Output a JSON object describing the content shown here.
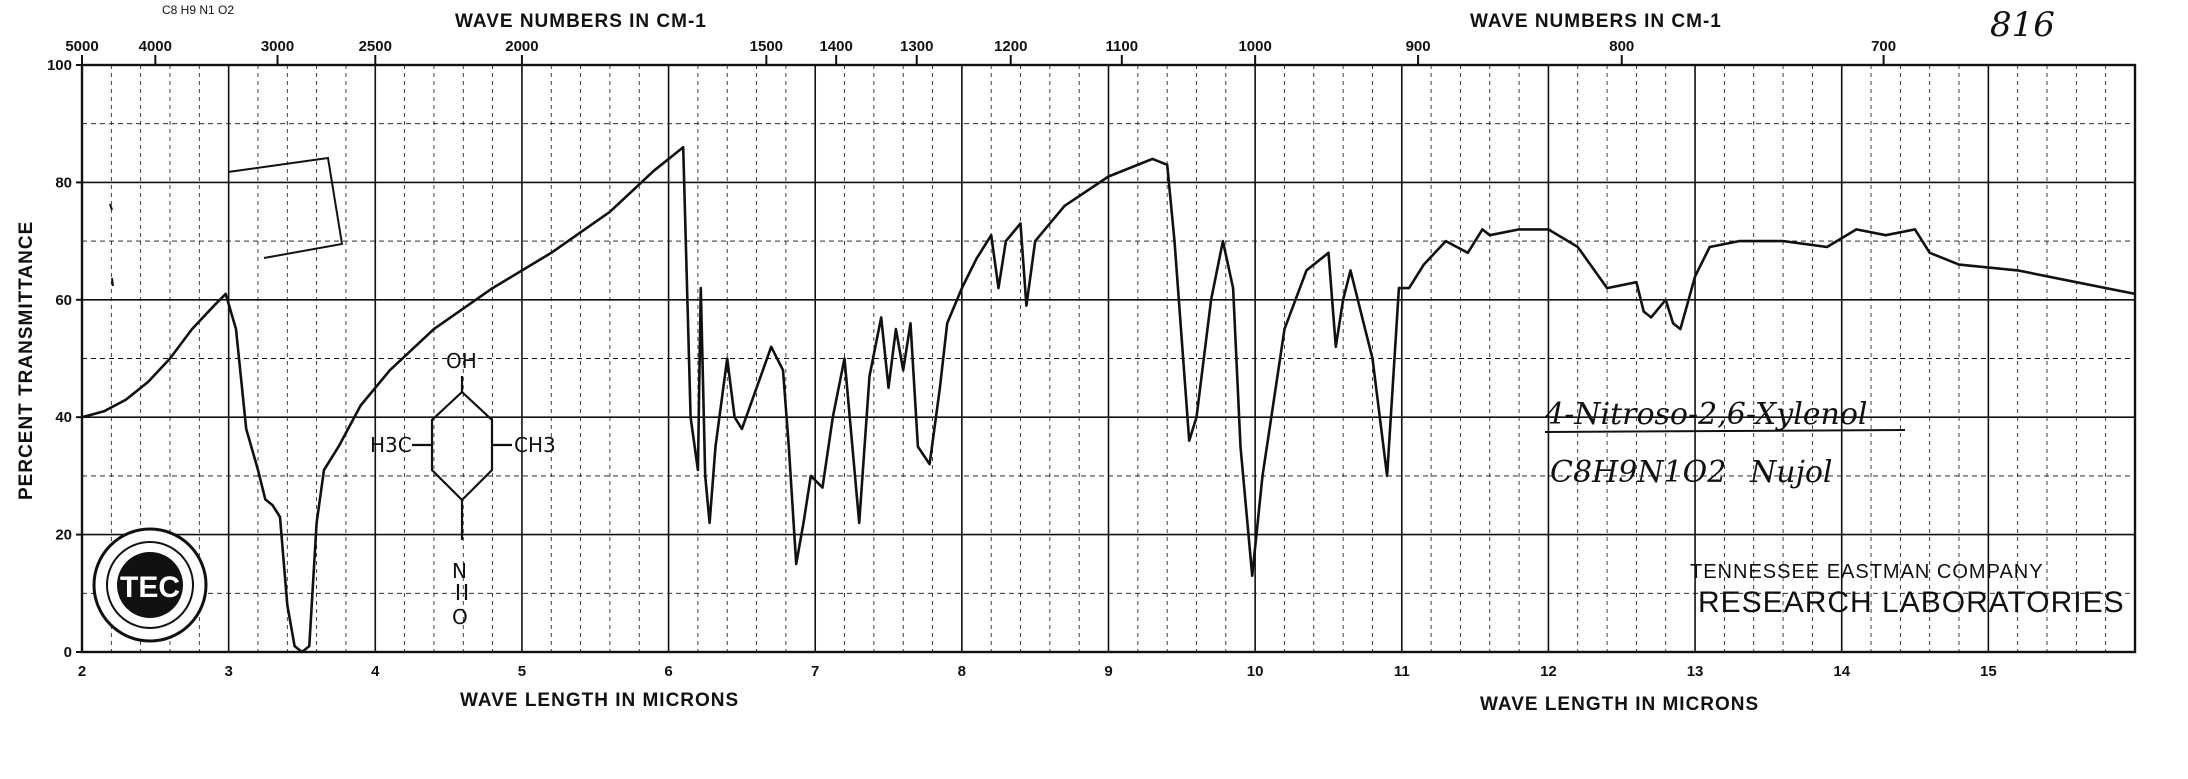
{
  "chart_data": {
    "type": "line",
    "top_axis_label_left": "WAVE NUMBERS IN CM-1",
    "top_axis_label_right": "WAVE NUMBERS IN CM-1",
    "bottom_axis_label_left": "WAVE LENGTH IN MICRONS",
    "bottom_axis_label_right": "WAVE LENGTH IN MICRONS",
    "ylabel": "PERCENT TRANSMITTANCE",
    "formula_header": "C8 H9 N1 O2",
    "page_number": "816",
    "compound_name": "4-Nitroso-2,6-Xylenol",
    "formula_line": "C8H9N1O2",
    "medium": "Nujol",
    "company_line1": "TENNESSEE EASTMAN COMPANY",
    "company_line2": "RESEARCH LABORATORIES",
    "logo_text": "TEC",
    "structure": {
      "oh": "OH",
      "left_methyl": "H3C",
      "right_methyl": "CH3",
      "n": "N",
      "o": "O"
    },
    "xlim": [
      2,
      16
    ],
    "ylim": [
      0,
      100
    ],
    "x_ticks": [
      "2",
      "3",
      "4",
      "5",
      "6",
      "7",
      "8",
      "9",
      "10",
      "11",
      "12",
      "13",
      "14",
      "15"
    ],
    "y_ticks": [
      "0",
      "20",
      "40",
      "60",
      "80",
      "100"
    ],
    "wavenumber_ticks": [
      "5000",
      "4000",
      "3000",
      "2500",
      "2000",
      "1500",
      "1400",
      "1300",
      "1200",
      "1100",
      "1000",
      "900",
      "800",
      "700"
    ],
    "grid": true,
    "series": [
      {
        "x": [
          2.0,
          2.15,
          2.3,
          2.45,
          2.6,
          2.75,
          2.9,
          2.98,
          3.05,
          3.12,
          3.2,
          3.25,
          3.3,
          3.35,
          3.4,
          3.45,
          3.5,
          3.55,
          3.6,
          3.65,
          3.75,
          3.9,
          4.1,
          4.4,
          4.8,
          5.2,
          5.6,
          5.9,
          6.05,
          6.1,
          6.15,
          6.2,
          6.22,
          6.25,
          6.28,
          6.32,
          6.4,
          6.45,
          6.5,
          6.6,
          6.7,
          6.78,
          6.82,
          6.87,
          6.92,
          6.97,
          7.05,
          7.12,
          7.2,
          7.3,
          7.37,
          7.45,
          7.5,
          7.55,
          7.6,
          7.65,
          7.7,
          7.78,
          7.85,
          7.9,
          8.0,
          8.1,
          8.2,
          8.25,
          8.3,
          8.4,
          8.44,
          8.5,
          8.7,
          9.0,
          9.3,
          9.4,
          9.45,
          9.55,
          9.6,
          9.7,
          9.78,
          9.85,
          9.9,
          9.98,
          10.05,
          10.2,
          10.35,
          10.5,
          10.55,
          10.6,
          10.65,
          10.75,
          10.8,
          10.9,
          10.98,
          11.05,
          11.15,
          11.3,
          11.45,
          11.55,
          11.6,
          11.8,
          12.0,
          12.2,
          12.4,
          12.6,
          12.65,
          12.7,
          12.8,
          12.85,
          12.9,
          13.0,
          13.1,
          13.3,
          13.6,
          13.9,
          14.1,
          14.3,
          14.5,
          14.6,
          14.8,
          15.2,
          15.6,
          16.0
        ],
        "y": [
          40,
          41,
          43,
          46,
          50,
          55,
          59,
          61,
          55,
          38,
          31,
          26,
          25,
          23,
          8,
          1,
          0,
          1,
          22,
          31,
          35,
          42,
          48,
          55,
          62,
          68,
          75,
          82,
          85,
          86,
          40,
          31,
          62,
          30,
          22,
          35,
          50,
          40,
          38,
          45,
          52,
          48,
          35,
          15,
          22,
          30,
          28,
          40,
          50,
          22,
          47,
          57,
          45,
          55,
          48,
          56,
          35,
          32,
          45,
          56,
          62,
          67,
          71,
          62,
          70,
          73,
          59,
          70,
          76,
          81,
          84,
          83,
          70,
          36,
          40,
          60,
          70,
          62,
          35,
          13,
          30,
          55,
          65,
          68,
          52,
          60,
          65,
          55,
          50,
          30,
          62,
          62,
          66,
          70,
          68,
          72,
          71,
          72,
          72,
          69,
          62,
          63,
          58,
          57,
          60,
          56,
          55,
          64,
          69,
          70,
          70,
          69,
          72,
          71,
          72,
          68,
          66,
          65,
          63,
          61
        ]
      }
    ]
  }
}
